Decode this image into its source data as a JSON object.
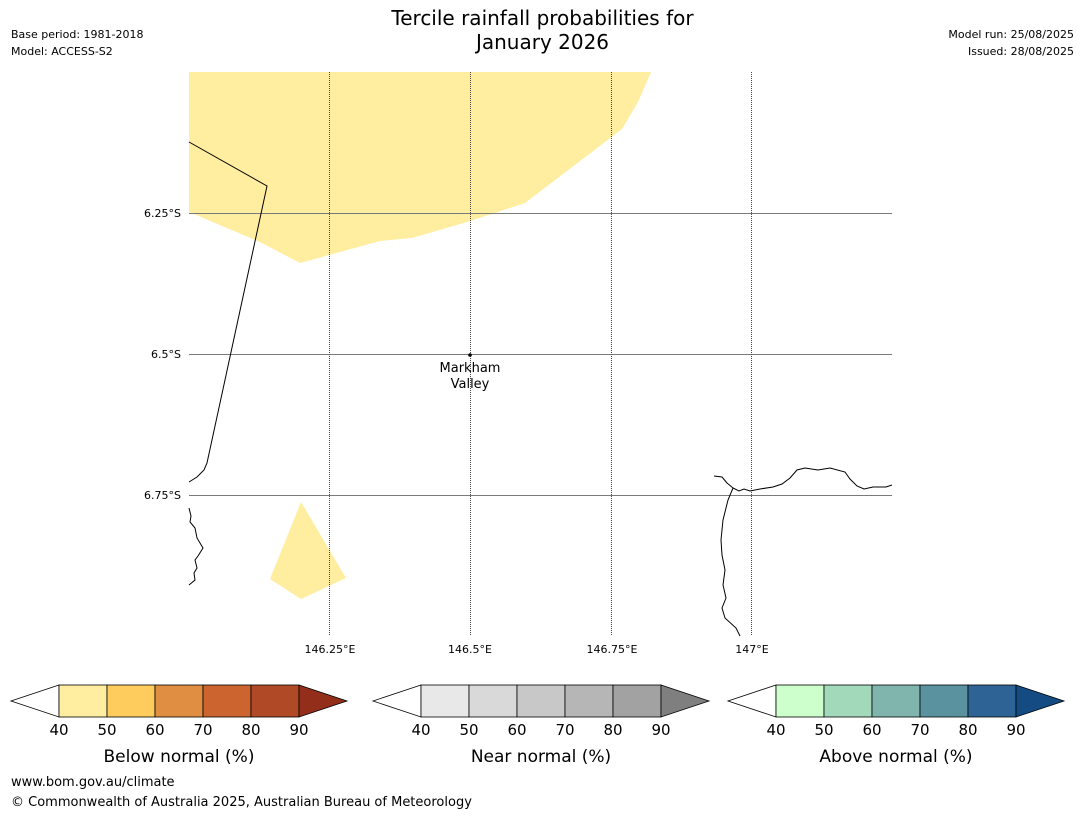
{
  "header": {
    "title_line1": "Tercile rainfall probabilities for",
    "title_line2": "January 2026",
    "base_period": "Base period: 1981-2018",
    "model": "Model: ACCESS-S2",
    "model_run": "Model run: 25/08/2025",
    "issued": "Issued: 28/08/2025"
  },
  "map": {
    "lat_labels": [
      "6.25°S",
      "6.5°S",
      "6.75°S"
    ],
    "lon_labels": [
      "146.25°E",
      "146.5°E",
      "146.75°E",
      "147°E"
    ],
    "place": {
      "name_line1": "Markham",
      "name_line2": "Valley"
    },
    "fill_color": "#ffeda0"
  },
  "legends": [
    {
      "title": "Below normal (%)",
      "ticks": [
        "40",
        "50",
        "60",
        "70",
        "80",
        "90"
      ],
      "colors": [
        "#ffeda0",
        "#fecc5c",
        "#e08f42",
        "#cc6430",
        "#b04a26",
        "#932e1a"
      ]
    },
    {
      "title": "Near normal (%)",
      "ticks": [
        "40",
        "50",
        "60",
        "70",
        "80",
        "90"
      ],
      "colors": [
        "#e8e8e8",
        "#d9d9d9",
        "#c8c8c8",
        "#b6b6b6",
        "#a2a2a2",
        "#7f7f7f"
      ]
    },
    {
      "title": "Above normal (%)",
      "ticks": [
        "40",
        "50",
        "60",
        "70",
        "80",
        "90"
      ],
      "colors": [
        "#ccffcc",
        "#a2d9bb",
        "#7fb5ad",
        "#5a92a0",
        "#2e6396",
        "#134b82"
      ]
    }
  ],
  "footer": {
    "url": "www.bom.gov.au/climate",
    "copyright": "© Commonwealth of Australia 2025, Australian Bureau of Meteorology"
  }
}
